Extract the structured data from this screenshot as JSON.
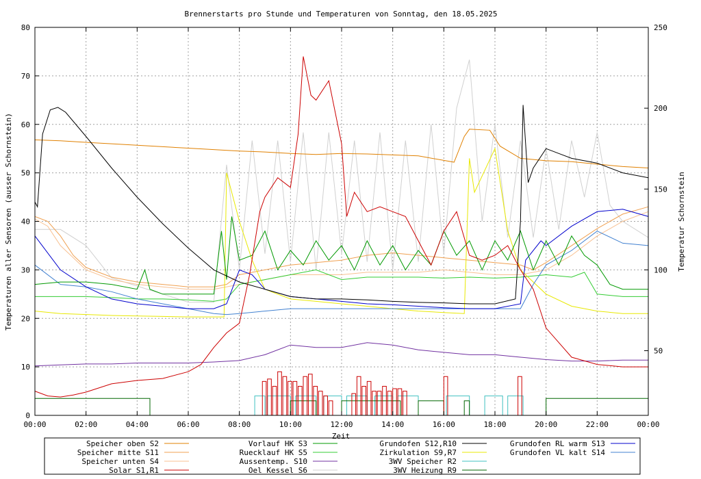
{
  "chart_data": {
    "type": "line",
    "title": "Brennerstarts pro Stunde und Temperaturen von Sonntag, den 18.05.2025",
    "xlabel": "Zeit",
    "ylabel": "Temperaturen aller Sensoren (ausser Schornstein)",
    "y2label": "Temperatur Schornstein",
    "y2label_color": "#ee66ee",
    "grid": true,
    "legend_position": "bottom",
    "x_range": [
      "00:00",
      "24:00"
    ],
    "ylim": [
      0,
      80
    ],
    "y2lim": [
      10,
      250
    ],
    "x_ticks": [
      "00:00",
      "02:00",
      "04:00",
      "06:00",
      "08:00",
      "10:00",
      "12:00",
      "14:00",
      "16:00",
      "18:00",
      "20:00",
      "22:00",
      "00:00"
    ],
    "y_ticks": [
      "0",
      "10",
      "20",
      "30",
      "40",
      "50",
      "60",
      "70",
      "80"
    ],
    "y2_ticks": [
      "50",
      "100",
      "150",
      "200",
      "250"
    ],
    "series": [
      {
        "name": "Speicher oben   S2",
        "color": "#e08000",
        "axis": "y1",
        "x": [
          0,
          1,
          2,
          3,
          4,
          5,
          6,
          7,
          8,
          9,
          10,
          11,
          12,
          13,
          14,
          15,
          16.4,
          16.8,
          17,
          17.8,
          18.2,
          19,
          20,
          21,
          22,
          23,
          24
        ],
        "y": [
          56.8,
          56.6,
          56.3,
          56,
          55.7,
          55.4,
          55.1,
          54.8,
          54.5,
          54.3,
          54,
          53.8,
          54,
          53.9,
          53.7,
          53.5,
          52.2,
          57.5,
          59,
          58.8,
          55.5,
          53,
          52.5,
          52.3,
          51.8,
          51.3,
          51
        ]
      },
      {
        "name": "Speicher mitte S11",
        "color": "#f0a050",
        "axis": "y1",
        "x": [
          0,
          0.5,
          1,
          1.5,
          2,
          3,
          4,
          5,
          6,
          7,
          7.5,
          8,
          9,
          10,
          11,
          12,
          13,
          14,
          15,
          16,
          17,
          18,
          19,
          19.5,
          20,
          21,
          22,
          23,
          24
        ],
        "y": [
          41,
          40,
          37,
          33,
          30.5,
          28.5,
          27.5,
          27,
          26.5,
          26.5,
          27,
          29,
          30,
          31,
          31.5,
          32,
          33,
          33.5,
          33,
          32.5,
          32,
          31.5,
          31,
          30,
          31.5,
          35,
          38.5,
          41.5,
          43
        ]
      },
      {
        "name": "Speicher unten S4",
        "color": "#f8c090",
        "axis": "y1",
        "x": [
          0,
          0.5,
          1,
          2,
          3,
          4,
          5,
          6,
          7,
          8,
          9,
          10,
          11,
          12,
          13,
          14,
          15,
          16,
          17,
          18,
          19,
          20,
          21,
          22,
          23,
          24
        ],
        "y": [
          40.5,
          39,
          35,
          30,
          28,
          27,
          26.5,
          26,
          26,
          27,
          28,
          29,
          29,
          29,
          29.5,
          29.5,
          29.5,
          30,
          29.5,
          29,
          29,
          30,
          33,
          37,
          40,
          42
        ]
      },
      {
        "name": "Solar      S1,R1",
        "color": "#cc0000",
        "axis": "y1",
        "x": [
          0,
          0.5,
          1,
          1.5,
          2,
          3,
          4,
          5,
          6,
          6.5,
          7,
          7.5,
          8,
          8.4,
          8.8,
          9,
          9.5,
          10,
          10.3,
          10.5,
          10.8,
          11,
          11.5,
          12,
          12.2,
          12.5,
          13,
          13.5,
          14,
          14.5,
          15,
          15.5,
          16,
          16.5,
          17,
          17.5,
          18,
          18.5,
          19,
          19.5,
          20,
          21,
          22,
          23,
          24
        ],
        "y": [
          5,
          4,
          3.8,
          4.2,
          4.8,
          6.5,
          7.2,
          7.6,
          9,
          10.5,
          14,
          17,
          19,
          29,
          42,
          45,
          49,
          47,
          58,
          74,
          66,
          65,
          69,
          56,
          41,
          46,
          42,
          43,
          42,
          41,
          36,
          31,
          38,
          42,
          33,
          32,
          33,
          35,
          30,
          26,
          18,
          12,
          10.5,
          10,
          10
        ]
      },
      {
        "name": "Vorlauf HK     S3",
        "color": "#009900",
        "axis": "y1",
        "x": [
          0,
          1,
          2,
          3,
          4,
          4.3,
          4.5,
          5,
          6,
          7,
          7.3,
          7.5,
          7.7,
          8,
          8.5,
          9,
          9.5,
          10,
          10.5,
          11,
          11.5,
          12,
          12.5,
          13,
          13.5,
          14,
          14.5,
          15,
          15.5,
          16,
          16.5,
          17,
          17.5,
          18,
          18.5,
          19,
          19.5,
          20,
          20.5,
          21,
          21.5,
          22,
          22.5,
          23,
          24
        ],
        "y": [
          27,
          27.5,
          27.5,
          27,
          26,
          30,
          26,
          25,
          25,
          25,
          38,
          28,
          41,
          32,
          33,
          38,
          30,
          34,
          31,
          36,
          32,
          35,
          30,
          36,
          31,
          35,
          30,
          34,
          31,
          38,
          33,
          36,
          30,
          36,
          32,
          38,
          30,
          36,
          31,
          37,
          33,
          31,
          27,
          26,
          26
        ]
      },
      {
        "name": "Ruecklauf HK   S5",
        "color": "#33cc33",
        "axis": "y1",
        "x": [
          0,
          1,
          2,
          3,
          4,
          5,
          6,
          7,
          7.5,
          8,
          9,
          10,
          11,
          12,
          13,
          14,
          15,
          16,
          17,
          18,
          19,
          20,
          21,
          21.5,
          22,
          23,
          24
        ],
        "y": [
          24.5,
          24.5,
          24.5,
          24.3,
          24,
          24,
          23.8,
          23.5,
          24,
          27,
          28,
          29,
          30,
          28,
          28.5,
          28.5,
          28.5,
          28.3,
          28.5,
          28.3,
          28.5,
          29,
          28.5,
          29.5,
          25,
          24.5,
          24.5
        ]
      },
      {
        "name": "Aussentemp.   S10",
        "color": "#7030a0",
        "axis": "y1",
        "x": [
          0,
          1,
          2,
          3,
          4,
          5,
          6,
          7,
          8,
          9,
          10,
          11,
          12,
          13,
          14,
          15,
          16,
          17,
          18,
          19,
          20,
          21,
          22,
          23,
          24
        ],
        "y": [
          10.2,
          10.4,
          10.6,
          10.6,
          10.8,
          10.8,
          10.8,
          11,
          11.3,
          12.5,
          14.5,
          14,
          14,
          15,
          14.5,
          13.5,
          13,
          12.5,
          12.5,
          12,
          11.5,
          11.2,
          11.2,
          11.4,
          11.4
        ]
      },
      {
        "name": "Oel Kessel     S6",
        "color": "#d0d0d0",
        "axis": "y2",
        "x": [
          0,
          1,
          2,
          3,
          4,
          5,
          6,
          7,
          7.5,
          8,
          8.5,
          9,
          9.5,
          10,
          10.5,
          11,
          11.5,
          12,
          12.5,
          13,
          13.5,
          14,
          14.5,
          15,
          15.5,
          16,
          16.5,
          17,
          17.5,
          18,
          18.5,
          19,
          19.5,
          20,
          20.5,
          21,
          21.5,
          22,
          22.5,
          23,
          24
        ],
        "y": [
          125,
          125,
          115,
          95,
          90,
          85,
          80,
          80,
          165,
          100,
          180,
          110,
          180,
          105,
          185,
          100,
          185,
          110,
          180,
          105,
          185,
          100,
          180,
          105,
          190,
          110,
          200,
          230,
          130,
          190,
          120,
          180,
          120,
          175,
          125,
          180,
          145,
          185,
          140,
          130,
          120
        ]
      },
      {
        "name": "Grundofen  S12,R10",
        "color": "#000000",
        "axis": "y1",
        "x": [
          0,
          0.1,
          0.3,
          0.6,
          0.9,
          1.2,
          2,
          3,
          4,
          5,
          6,
          7,
          8,
          9,
          10,
          11,
          12,
          13,
          14,
          15,
          16,
          17,
          18,
          18.8,
          19,
          19.1,
          19.3,
          19.5,
          20,
          20.5,
          21,
          22,
          23,
          24
        ],
        "y": [
          44,
          43,
          58,
          63,
          63.5,
          62.5,
          57.5,
          51,
          45,
          39.5,
          34.5,
          30,
          27.5,
          26,
          24.5,
          24,
          24,
          23.8,
          23.5,
          23.3,
          23.2,
          23,
          23,
          24,
          40,
          64,
          48,
          51,
          55,
          54,
          53,
          52,
          50,
          49
        ]
      },
      {
        "name": "Zirkulation  S9,R7",
        "color": "#e8e800",
        "axis": "y1",
        "x": [
          0,
          1,
          2,
          3,
          4,
          5,
          6,
          7,
          7.4,
          7.5,
          8,
          8.5,
          9,
          10,
          11,
          12,
          13,
          14,
          15,
          16,
          16.8,
          17,
          17.2,
          18,
          18.5,
          19,
          20,
          21,
          22,
          23,
          24
        ],
        "y": [
          21.5,
          21,
          20.8,
          20.6,
          20.5,
          20.4,
          20.3,
          20.3,
          20.3,
          50,
          40,
          32,
          26,
          24,
          23.5,
          23,
          22.5,
          22,
          21.5,
          21.2,
          21,
          53,
          46,
          55,
          38,
          30,
          25,
          22.5,
          21.5,
          21,
          21
        ]
      },
      {
        "name": "3WV Speicher     R2",
        "color": "#40c0c0",
        "axis": "y1",
        "x": [
          8.6,
          8.6,
          9,
          9,
          9.1,
          9.1,
          10,
          10,
          10.2,
          10.2,
          11,
          11,
          11.3,
          11.3,
          12,
          12,
          12.2,
          12.2,
          13,
          13,
          13.3,
          13.3,
          14,
          14,
          14.2,
          14.2,
          15,
          15,
          15.2,
          16.1,
          16.1,
          17,
          17,
          17.2,
          17.6,
          17.6,
          18.3,
          18.3,
          18.5,
          18.5,
          19.1,
          19.1
        ],
        "y": [
          0,
          4,
          4,
          0,
          0,
          4,
          4,
          0,
          0,
          4,
          4,
          0,
          0,
          4,
          4,
          0,
          0,
          4,
          4,
          0,
          0,
          4,
          4,
          0,
          0,
          4,
          4,
          0,
          0,
          0,
          4,
          4,
          0,
          0,
          0,
          4,
          4,
          0,
          0,
          4,
          4,
          0
        ]
      },
      {
        "name": "Grundofen RL warm   S13",
        "color": "#0000cc",
        "axis": "y1",
        "x": [
          0,
          1,
          2,
          3,
          4,
          5,
          6,
          7,
          7.5,
          8,
          8.5,
          9,
          10,
          11,
          12,
          13,
          14,
          15,
          16,
          17,
          18,
          19,
          19.2,
          19.8,
          20,
          21,
          22,
          23,
          24
        ],
        "y": [
          37,
          30,
          26.5,
          24,
          23,
          22.5,
          22,
          22,
          23,
          30,
          29,
          26,
          24.5,
          24,
          23.5,
          23,
          22.8,
          22.5,
          22.2,
          22,
          22,
          23,
          32,
          36,
          35,
          39,
          42,
          42.5,
          41
        ]
      },
      {
        "name": "Grundofen VL kalt   S14",
        "color": "#4080d0",
        "axis": "y1",
        "x": [
          0,
          1,
          2,
          3,
          4,
          5,
          6,
          7,
          7.5,
          8,
          9,
          10,
          11,
          12,
          13,
          14,
          15,
          16,
          17,
          18,
          19,
          19.5,
          20,
          21,
          22,
          23,
          24
        ],
        "y": [
          31,
          27,
          26.5,
          25.5,
          24,
          23,
          22,
          21,
          20.8,
          21,
          21.5,
          22,
          22,
          22,
          22,
          22,
          22,
          22,
          22,
          22,
          22,
          27,
          31,
          34,
          38,
          35.5,
          35
        ]
      },
      {
        "name": "3WV Heizung  R9",
        "color": "#006600",
        "axis": "y1",
        "x": [
          0,
          4.5,
          4.5,
          10,
          10,
          11,
          11,
          12,
          12,
          14.3,
          14.3,
          15,
          15,
          16,
          16,
          16.8,
          16.8,
          17,
          17,
          20,
          20,
          24
        ],
        "y": [
          3.5,
          3.5,
          0,
          0,
          3,
          3,
          0,
          0,
          3,
          3,
          0,
          0,
          3,
          3,
          0,
          0,
          3,
          3,
          0,
          0,
          3.5,
          3.5
        ]
      }
    ],
    "burner_starts": {
      "name": "Brennerstarts",
      "color": "#cc0000",
      "axis": "y1",
      "x": [
        8.9,
        9.1,
        9.3,
        9.5,
        9.7,
        9.9,
        10.1,
        10.3,
        10.5,
        10.7,
        10.9,
        11.1,
        11.3,
        11.5,
        12.4,
        12.6,
        12.8,
        13,
        13.2,
        13.4,
        13.6,
        13.8,
        14,
        14.2,
        14.4,
        16,
        18.9
      ],
      "y": [
        7,
        7.5,
        6,
        9,
        8,
        7,
        7,
        6,
        8,
        8.5,
        6,
        5,
        4,
        3,
        4.5,
        8,
        6,
        7,
        5,
        5,
        6,
        5,
        5.5,
        5.5,
        5,
        8,
        8
      ]
    }
  },
  "legend": {
    "col1": [
      {
        "label": "Speicher oben   S2",
        "color": "#e08000"
      },
      {
        "label": "Speicher mitte S11",
        "color": "#f0a050"
      },
      {
        "label": "Speicher unten S4",
        "color": "#f8c090"
      },
      {
        "label": "Solar      S1,R1",
        "color": "#cc0000"
      }
    ],
    "col2": [
      {
        "label": "Vorlauf HK     S3",
        "color": "#009900"
      },
      {
        "label": "Ruecklauf HK   S5",
        "color": "#33cc33"
      },
      {
        "label": "Aussentemp.   S10",
        "color": "#7030a0"
      },
      {
        "label": "Oel Kessel     S6",
        "color": "#d0d0d0"
      }
    ],
    "col3": [
      {
        "label": "Grundofen    S12,R10",
        "color": "#000000"
      },
      {
        "label": "Zirkulation   S9,R7",
        "color": "#e8e800"
      },
      {
        "label": "3WV Speicher      R2",
        "color": "#40c0c0"
      },
      {
        "label": "3WV Heizung   R9",
        "color": "#006600"
      }
    ],
    "col4": [
      {
        "label": "Grundofen RL warm   S13",
        "color": "#0000cc"
      },
      {
        "label": "Grundofen VL kalt   S14",
        "color": "#4080d0"
      }
    ]
  }
}
